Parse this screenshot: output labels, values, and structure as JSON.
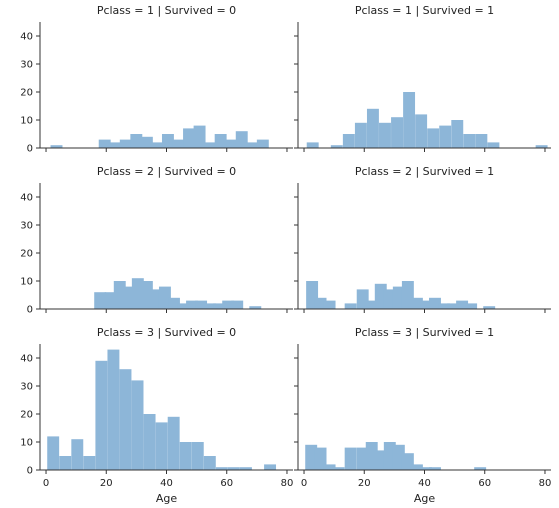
{
  "chart_data": {
    "type": "bar",
    "layout": "facet-grid",
    "rows": 3,
    "cols": 2,
    "xlabel": "Age",
    "ylabel": "",
    "xlim": [
      -2,
      82
    ],
    "ylim": [
      0,
      45
    ],
    "xticks": [
      0,
      20,
      40,
      60,
      80
    ],
    "yticks": [
      0,
      10,
      20,
      30,
      40
    ],
    "bar_color": "#8db6d8",
    "bin_width": 3.96,
    "panels": [
      {
        "title": "Pclass = 1 | Survived = 0",
        "bin_starts": [
          1.5,
          5.5,
          9.5,
          13.5,
          17.5,
          21.0,
          24.5,
          28.0,
          31.5,
          35.0,
          38.5,
          42.0,
          45.5,
          49.0,
          52.5,
          56.0,
          59.5,
          63.0,
          66.5,
          70.0
        ],
        "values": [
          1,
          0,
          0,
          0,
          3,
          2,
          3,
          5,
          4,
          2,
          5,
          3,
          7,
          8,
          2,
          5,
          3,
          6,
          2,
          3
        ]
      },
      {
        "title": "Pclass = 1 | Survived = 1",
        "bin_starts": [
          0.9,
          4.9,
          8.9,
          12.9,
          16.9,
          20.9,
          24.9,
          28.9,
          32.9,
          36.9,
          40.9,
          44.9,
          48.9,
          52.9,
          56.9,
          60.9,
          64.9,
          68.9,
          72.9,
          76.9
        ],
        "values": [
          2,
          0,
          1,
          5,
          9,
          14,
          9,
          11,
          20,
          12,
          7,
          8,
          10,
          5,
          5,
          2,
          0,
          0,
          0,
          1
        ]
      },
      {
        "title": "Pclass = 2 | Survived = 0",
        "bin_starts": [
          16.0,
          19.5,
          22.5,
          25.5,
          28.5,
          31.5,
          34.5,
          37.5,
          40.5,
          43.5,
          46.5,
          49.5,
          52.5,
          55.5,
          58.5,
          61.5,
          64.5,
          67.5
        ],
        "values": [
          6,
          6,
          10,
          8,
          11,
          10,
          7,
          8,
          4,
          2,
          3,
          3,
          2,
          2,
          3,
          3,
          0,
          1
        ]
      },
      {
        "title": "Pclass = 2 | Survived = 1",
        "bin_starts": [
          0.7,
          3.5,
          6.5,
          9.5,
          13.5,
          17.5,
          20.5,
          23.5,
          26.5,
          29.5,
          32.5,
          35.5,
          38.5,
          41.5,
          44.5,
          47.5,
          50.5,
          53.5,
          56.5,
          59.5
        ],
        "values": [
          10,
          4,
          3,
          0,
          2,
          7,
          3,
          9,
          7,
          8,
          10,
          4,
          3,
          4,
          2,
          2,
          3,
          2,
          0,
          1
        ]
      },
      {
        "title": "Pclass = 3 | Survived = 0",
        "bin_starts": [
          0.4,
          4.4,
          8.4,
          12.4,
          16.4,
          20.4,
          24.4,
          28.4,
          32.4,
          36.4,
          40.4,
          44.4,
          48.4,
          52.4,
          56.4,
          60.4,
          64.4,
          68.4,
          72.4,
          76.4
        ],
        "values": [
          12,
          5,
          11,
          5,
          39,
          43,
          36,
          32,
          20,
          17,
          19,
          10,
          10,
          5,
          1,
          1,
          1,
          0,
          2,
          0
        ]
      },
      {
        "title": "Pclass = 3 | Survived = 1",
        "bin_starts": [
          0.4,
          3.5,
          6.5,
          9.5,
          13.5,
          17.5,
          20.5,
          23.5,
          26.5,
          29.5,
          32.5,
          35.5,
          38.5,
          41.5,
          44.5,
          47.5,
          50.5,
          53.5,
          56.5,
          59.5
        ],
        "values": [
          9,
          8,
          2,
          1,
          8,
          8,
          10,
          7,
          10,
          9,
          6,
          2,
          1,
          1,
          0,
          0,
          0,
          0,
          1,
          0
        ]
      }
    ]
  }
}
